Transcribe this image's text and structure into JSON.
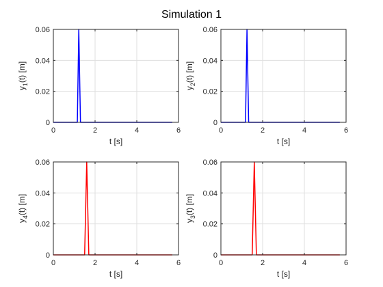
{
  "figure": {
    "title": "Simulation 1"
  },
  "chart_data": [
    {
      "type": "line",
      "title": "",
      "xlabel": "t [s]",
      "ylabel": {
        "prefix": "y",
        "sub": "1",
        "suffix": "(t) [m]"
      },
      "xlim": [
        0,
        6
      ],
      "ylim": [
        0,
        0.06
      ],
      "xticks": [
        0,
        2,
        4,
        6
      ],
      "yticks": [
        0,
        0.02,
        0.04,
        0.06
      ],
      "grid": true,
      "series": [
        {
          "color": "#0000ff",
          "x": [
            0,
            1.15,
            1.22,
            1.3,
            5.7
          ],
          "y": [
            0,
            0,
            0.06,
            0,
            0
          ]
        }
      ]
    },
    {
      "type": "line",
      "title": "",
      "xlabel": "t [s]",
      "ylabel": {
        "prefix": "y",
        "sub": "2",
        "suffix": "(t) [m]"
      },
      "xlim": [
        0,
        6
      ],
      "ylim": [
        0,
        0.06
      ],
      "xticks": [
        0,
        2,
        4,
        6
      ],
      "yticks": [
        0,
        0.02,
        0.04,
        0.06
      ],
      "grid": true,
      "series": [
        {
          "color": "#0000ff",
          "x": [
            0,
            1.18,
            1.25,
            1.33,
            5.7
          ],
          "y": [
            0,
            0,
            0.06,
            0,
            0
          ]
        }
      ]
    },
    {
      "type": "line",
      "title": "",
      "xlabel": "t [s]",
      "ylabel": {
        "prefix": "y",
        "sub": "4",
        "suffix": "(t) [m]"
      },
      "xlim": [
        0,
        6
      ],
      "ylim": [
        0,
        0.06
      ],
      "xticks": [
        0,
        2,
        4,
        6
      ],
      "yticks": [
        0,
        0.02,
        0.04,
        0.06
      ],
      "grid": true,
      "series": [
        {
          "color": "#ff0000",
          "x": [
            0,
            1.5,
            1.6,
            1.7,
            5.7
          ],
          "y": [
            0,
            0,
            0.06,
            0,
            0
          ]
        }
      ]
    },
    {
      "type": "line",
      "title": "",
      "xlabel": "t [s]",
      "ylabel": {
        "prefix": "y",
        "sub": "3",
        "suffix": "(t) [m]"
      },
      "xlim": [
        0,
        6
      ],
      "ylim": [
        0,
        0.06
      ],
      "xticks": [
        0,
        2,
        4,
        6
      ],
      "yticks": [
        0,
        0.02,
        0.04,
        0.06
      ],
      "grid": true,
      "series": [
        {
          "color": "#ff0000",
          "x": [
            0,
            1.5,
            1.6,
            1.7,
            5.7
          ],
          "y": [
            0,
            0,
            0.06,
            0,
            0
          ]
        }
      ]
    }
  ]
}
